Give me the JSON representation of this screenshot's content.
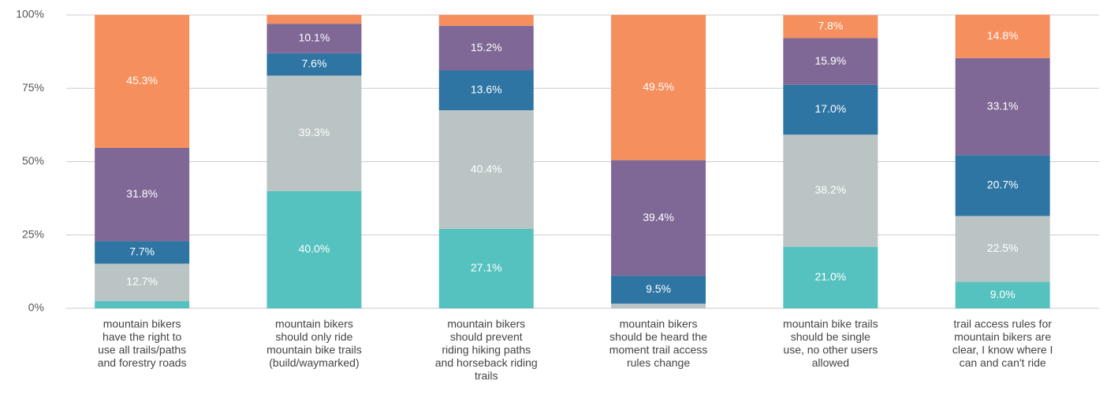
{
  "chart_data": {
    "type": "stacked_bar",
    "categories": [
      [
        "mountain bikers",
        "have the right to",
        "use all trails/paths",
        "and forestry roads"
      ],
      [
        "mountain bikers",
        "should only ride",
        "mountain bike trails",
        "(build/waymarked)"
      ],
      [
        "mountain bikers",
        "should prevent",
        "riding hiking paths",
        "and horseback riding",
        "trails"
      ],
      [
        "mountain bikers",
        "should be heard the",
        "moment trail access",
        "rules change"
      ],
      [
        "mountain bike trails",
        "should be single",
        "use, no other users",
        "allowed"
      ],
      [
        "trail access rules for",
        "mountain bikers are",
        "clear, I know where I",
        "can and can't ride"
      ]
    ],
    "series": [
      {
        "color": "#56c2c0",
        "values": [
          2.5,
          40.0,
          27.1,
          0,
          21.0,
          9.0
        ],
        "value_labels": [
          null,
          "40.0%",
          "27.1%",
          null,
          "21.0%",
          "9.0%"
        ]
      },
      {
        "color": "#bac4c4",
        "values": [
          12.7,
          39.3,
          40.4,
          1.6,
          38.2,
          22.5
        ],
        "value_labels": [
          "12.7%",
          "39.3%",
          "40.4%",
          null,
          "38.2%",
          "22.5%"
        ]
      },
      {
        "color": "#2e75a4",
        "values": [
          7.7,
          7.6,
          13.6,
          9.5,
          17.0,
          20.7
        ],
        "value_labels": [
          "7.7%",
          "7.6%",
          "13.6%",
          "9.5%",
          "17.0%",
          "20.7%"
        ]
      },
      {
        "color": "#7f6896",
        "values": [
          31.8,
          10.1,
          15.2,
          39.4,
          15.9,
          33.1
        ],
        "value_labels": [
          "31.8%",
          "10.1%",
          "15.2%",
          "39.4%",
          "15.9%",
          "33.1%"
        ]
      },
      {
        "color": "#f68f5e",
        "values": [
          45.3,
          3.0,
          3.7,
          49.5,
          7.8,
          14.8
        ],
        "value_labels": [
          "45.3%",
          null,
          null,
          "49.5%",
          "7.8%",
          "14.8%"
        ]
      }
    ],
    "ylim": [
      0,
      100
    ],
    "yticks": [
      {
        "value": 0,
        "label": "0%"
      },
      {
        "value": 25,
        "label": "25%"
      },
      {
        "value": 50,
        "label": "50%"
      },
      {
        "value": 75,
        "label": "75%"
      },
      {
        "value": 100,
        "label": "100%"
      }
    ],
    "grid": true
  }
}
